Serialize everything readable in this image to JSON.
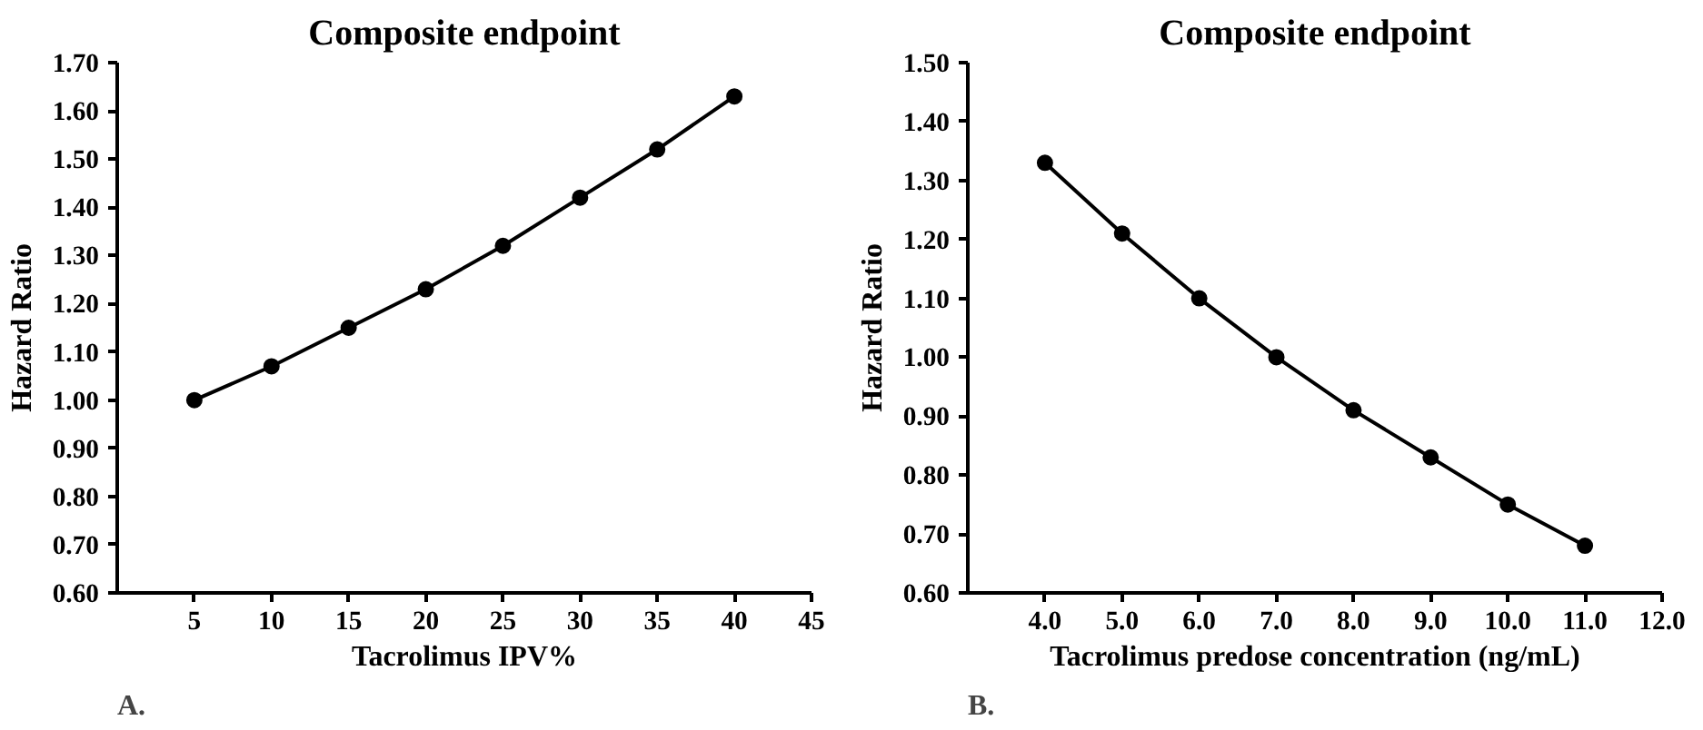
{
  "chart_data": [
    {
      "type": "line",
      "title": "Composite endpoint",
      "xlabel": "Tacrolimus IPV%",
      "ylabel": "Hazard Ratio",
      "annotations": [
        "A."
      ],
      "x": [
        5,
        10,
        15,
        20,
        25,
        30,
        35,
        40
      ],
      "series": [
        {
          "color": "#000000",
          "values": [
            1.0,
            1.07,
            1.15,
            1.23,
            1.32,
            1.42,
            1.52,
            1.63
          ]
        }
      ],
      "xlim": [
        0,
        45
      ],
      "xticks": [
        5,
        10,
        15,
        20,
        25,
        30,
        35,
        40,
        45
      ],
      "ylim": [
        0.6,
        1.7
      ],
      "yticks": [
        {
          "value": 0.6,
          "label": "0.60"
        },
        {
          "value": 0.7,
          "label": "0.70"
        },
        {
          "value": 0.8,
          "label": "0.80"
        },
        {
          "value": 0.9,
          "label": "0.90"
        },
        {
          "value": 1.0,
          "label": "1.00"
        },
        {
          "value": 1.1,
          "label": "1.10"
        },
        {
          "value": 1.2,
          "label": "1.20"
        },
        {
          "value": 1.3,
          "label": "1.30"
        },
        {
          "value": 1.4,
          "label": "1.40"
        },
        {
          "value": 1.5,
          "label": "1.50"
        },
        {
          "value": 1.6,
          "label": "1.60"
        },
        {
          "value": 1.7,
          "label": "1.70"
        }
      ],
      "grid": false,
      "marker": "circle",
      "line_style": "solid"
    },
    {
      "type": "line",
      "title": "Composite endpoint",
      "xlabel": "Tacrolimus predose concentration (ng/mL)",
      "ylabel": "Hazard Ratio",
      "annotations": [
        "B."
      ],
      "x": [
        4,
        5,
        6,
        7,
        8,
        9,
        10,
        11
      ],
      "series": [
        {
          "color": "#000000",
          "values": [
            1.33,
            1.21,
            1.1,
            1.0,
            0.91,
            0.83,
            0.75,
            0.68
          ]
        }
      ],
      "xlim": [
        3,
        12
      ],
      "xticks": [
        {
          "value": 4,
          "label": "4.0"
        },
        {
          "value": 5,
          "label": "5.0"
        },
        {
          "value": 6,
          "label": "6.0"
        },
        {
          "value": 7,
          "label": "7.0"
        },
        {
          "value": 8,
          "label": "8.0"
        },
        {
          "value": 9,
          "label": "9.0"
        },
        {
          "value": 10,
          "label": "10.0"
        },
        {
          "value": 11,
          "label": "11.0"
        },
        {
          "value": 12,
          "label": "12.0"
        }
      ],
      "ylim": [
        0.6,
        1.5
      ],
      "yticks": [
        {
          "value": 0.6,
          "label": "0.60"
        },
        {
          "value": 0.7,
          "label": "0.70"
        },
        {
          "value": 0.8,
          "label": "0.80"
        },
        {
          "value": 0.9,
          "label": "0.90"
        },
        {
          "value": 1.0,
          "label": "1.00"
        },
        {
          "value": 1.1,
          "label": "1.10"
        },
        {
          "value": 1.2,
          "label": "1.20"
        },
        {
          "value": 1.3,
          "label": "1.30"
        },
        {
          "value": 1.4,
          "label": "1.40"
        },
        {
          "value": 1.5,
          "label": "1.50"
        }
      ],
      "grid": false,
      "marker": "circle",
      "line_style": "solid"
    }
  ]
}
